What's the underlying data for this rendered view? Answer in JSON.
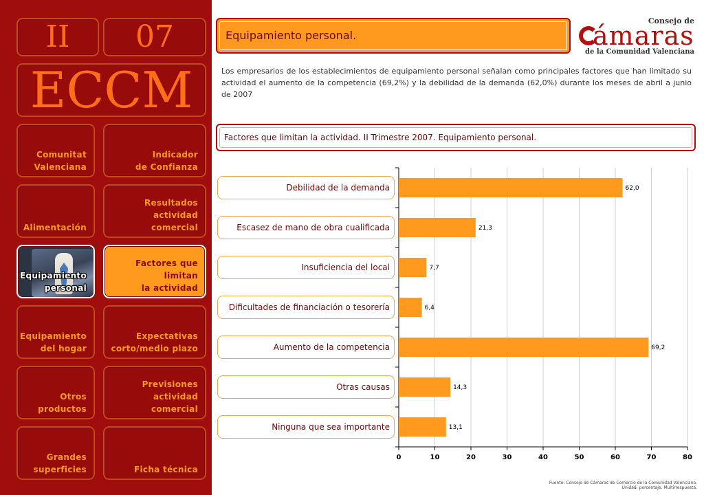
{
  "sidebar": {
    "section_number": "II",
    "page_number": "07",
    "acronym": "ECCM",
    "items": [
      {
        "label": "Comunitat\nValenciana"
      },
      {
        "label": "Indicador\nde Confianza"
      },
      {
        "label": "Alimentación"
      },
      {
        "label": "Resultados actividad\ncomercial"
      },
      {
        "label": "Equipamiento\npersonal"
      },
      {
        "label": "Factores que limitan\nla actividad"
      },
      {
        "label": "Equipamiento\ndel hogar"
      },
      {
        "label": "Expectativas\ncorto/medio plazo"
      },
      {
        "label": "Otros\nproductos"
      },
      {
        "label": "Previsiones actividad\ncomercial"
      },
      {
        "label": "Grandes\nsuperficies"
      },
      {
        "label": "Ficha técnica"
      }
    ]
  },
  "header": {
    "title": "Equipamiento personal."
  },
  "logo": {
    "top": "Consejo de",
    "main": "ámaras",
    "sub": "de la Comunidad Valenciana"
  },
  "intro": "Los empresarios de los establecimientos de equipamiento personal señalan como principales factores que han limitado su actividad el aumento de la competencia (69,2%) y la debilidad de la demanda (62,0%) durante los meses de abril a junio de 2007",
  "chart_section": {
    "title": "Factores que limitan la actividad. II Trimestre 2007. Equipamiento personal."
  },
  "chart_data": {
    "type": "bar",
    "orientation": "horizontal",
    "categories": [
      "Debilidad de la demanda",
      "Escasez de mano de obra cualificada",
      "Insuficiencia del local",
      "Dificultades de financiación o tesorería",
      "Aumento de la competencia",
      "Otras causas",
      "Ninguna que sea importante"
    ],
    "values": [
      62.0,
      21.3,
      7.7,
      6.4,
      69.2,
      14.3,
      13.1
    ],
    "value_labels": [
      "62,0",
      "21,3",
      "7,7",
      "6,4",
      "69,2",
      "14,3",
      "13,1"
    ],
    "xlim": [
      0,
      80
    ],
    "xticks": [
      0,
      10,
      20,
      30,
      40,
      50,
      60,
      70,
      80
    ],
    "bar_color": "#ff9a1e",
    "grid": true
  },
  "source": "Fuente: Consejo de Cámaras de Comercio de la Comunidad Valenciana.\nUnidad: porcentaje. Multirrespuesta."
}
